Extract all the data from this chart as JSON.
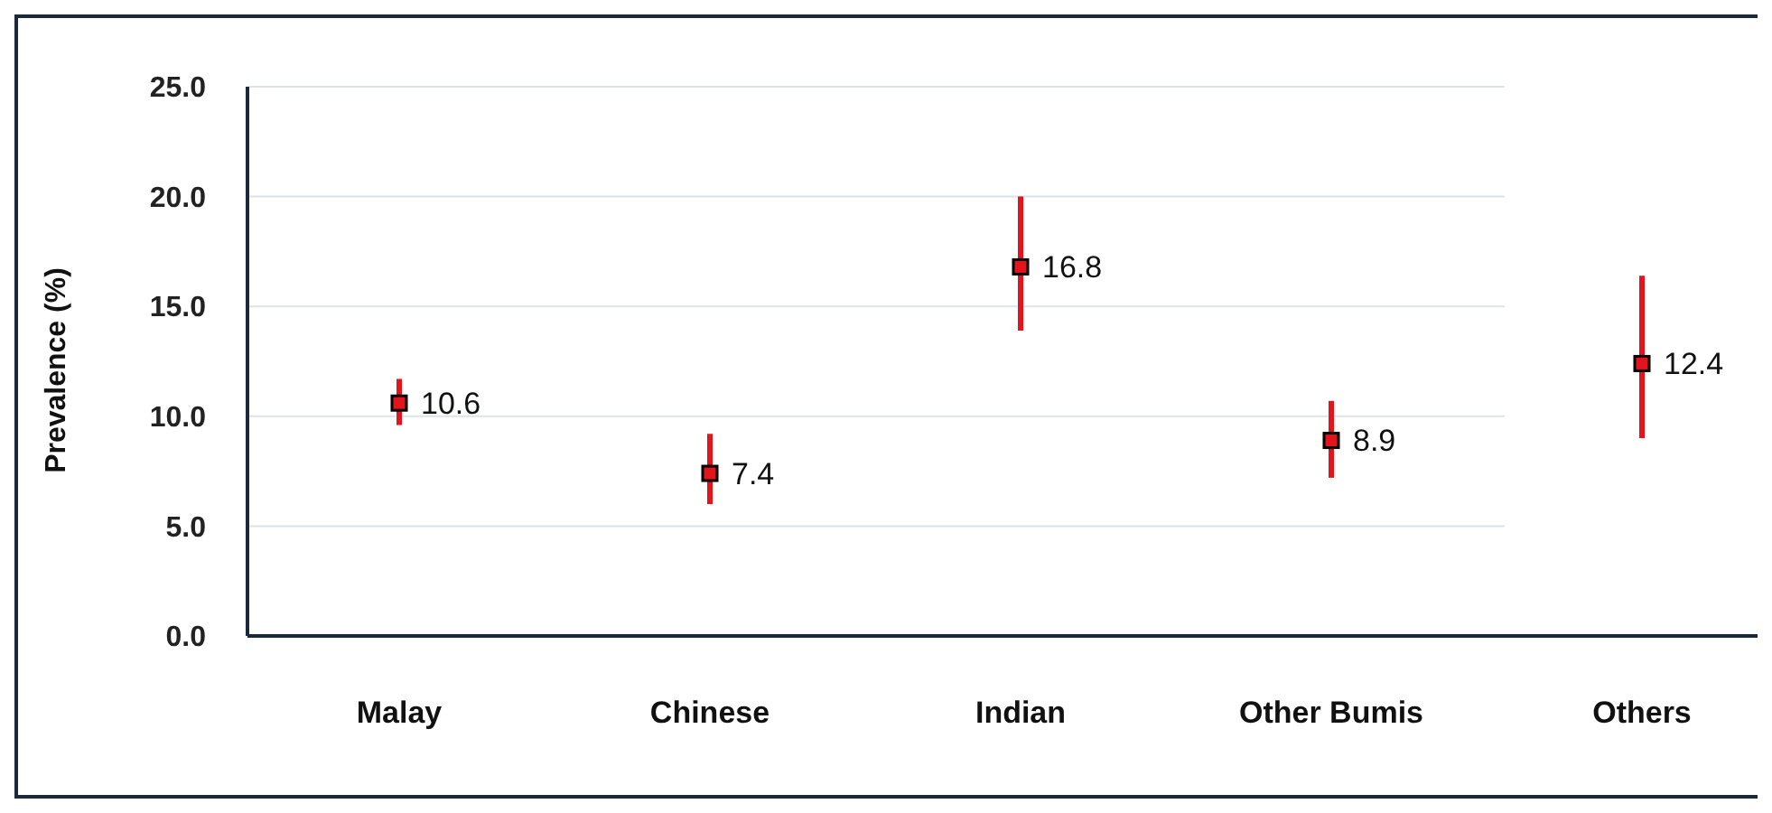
{
  "chart_data": {
    "type": "scatter",
    "ylabel": "Prevalence (%)",
    "categories": [
      "Malay",
      "Chinese",
      "Indian",
      "Other Bumis",
      "Others"
    ],
    "series": [
      {
        "color": "#e3141c",
        "values": [
          10.6,
          7.4,
          16.8,
          8.9,
          12.4
        ],
        "errors": [
          [
            9.6,
            11.7
          ],
          [
            6.0,
            9.2
          ],
          [
            13.9,
            20.0
          ],
          [
            7.2,
            10.7
          ],
          [
            9.0,
            16.4
          ]
        ]
      }
    ],
    "ylim": [
      0,
      25
    ],
    "yticks": [
      {
        "value": 0,
        "label": "0.0"
      },
      {
        "value": 5,
        "label": "5.0"
      },
      {
        "value": 10,
        "label": "10.0"
      },
      {
        "value": 15,
        "label": "15.0"
      },
      {
        "value": 20,
        "label": "20.0"
      },
      {
        "value": 25,
        "label": "25.0"
      }
    ],
    "grid": "y",
    "marker": "square",
    "data_labels": true
  }
}
